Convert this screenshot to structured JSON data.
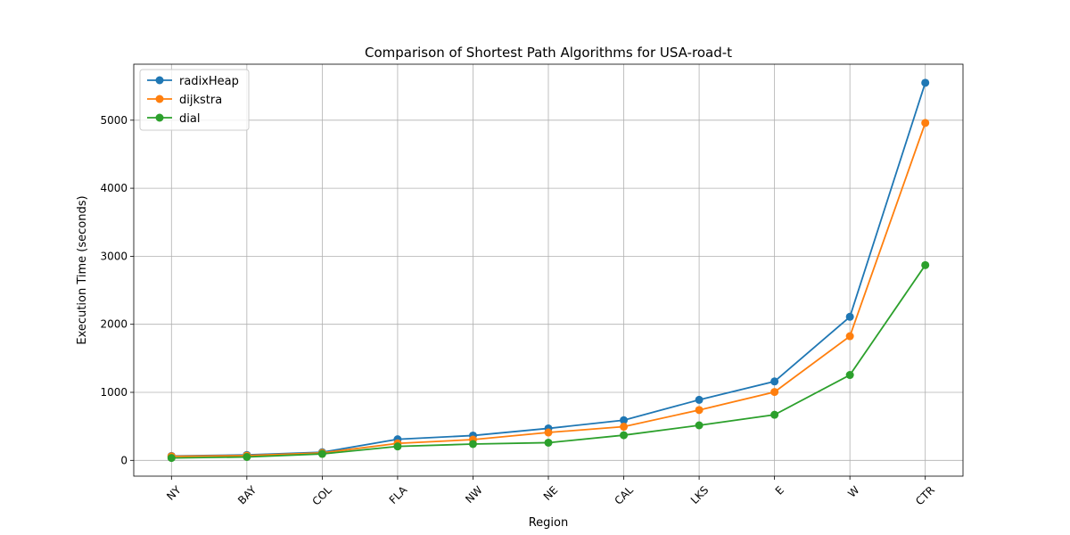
{
  "chart_data": {
    "type": "line",
    "title": "Comparison of Shortest Path Algorithms for USA-road-t",
    "xlabel": "Region",
    "ylabel": "Execution Time (seconds)",
    "categories": [
      "NY",
      "BAY",
      "COL",
      "FLA",
      "NW",
      "NE",
      "CAL",
      "LKS",
      "E",
      "W",
      "CTR"
    ],
    "series": [
      {
        "name": "radixHeap",
        "color": "#1f77b4",
        "values": [
          65,
          80,
          120,
          310,
          365,
          470,
          590,
          890,
          1160,
          2110,
          5550
        ]
      },
      {
        "name": "dijkstra",
        "color": "#ff7f0e",
        "values": [
          60,
          70,
          110,
          250,
          305,
          410,
          495,
          740,
          1005,
          1825,
          4960
        ]
      },
      {
        "name": "dial",
        "color": "#2ca02c",
        "values": [
          35,
          50,
          95,
          205,
          240,
          260,
          370,
          515,
          670,
          1255,
          2870
        ]
      }
    ],
    "yticks": [
      0,
      1000,
      2000,
      3000,
      4000,
      5000
    ],
    "ylim": [
      -240,
      5820
    ],
    "grid": true,
    "legend_position": "upper-left",
    "marker": "circle",
    "xtick_rotation": 45
  }
}
